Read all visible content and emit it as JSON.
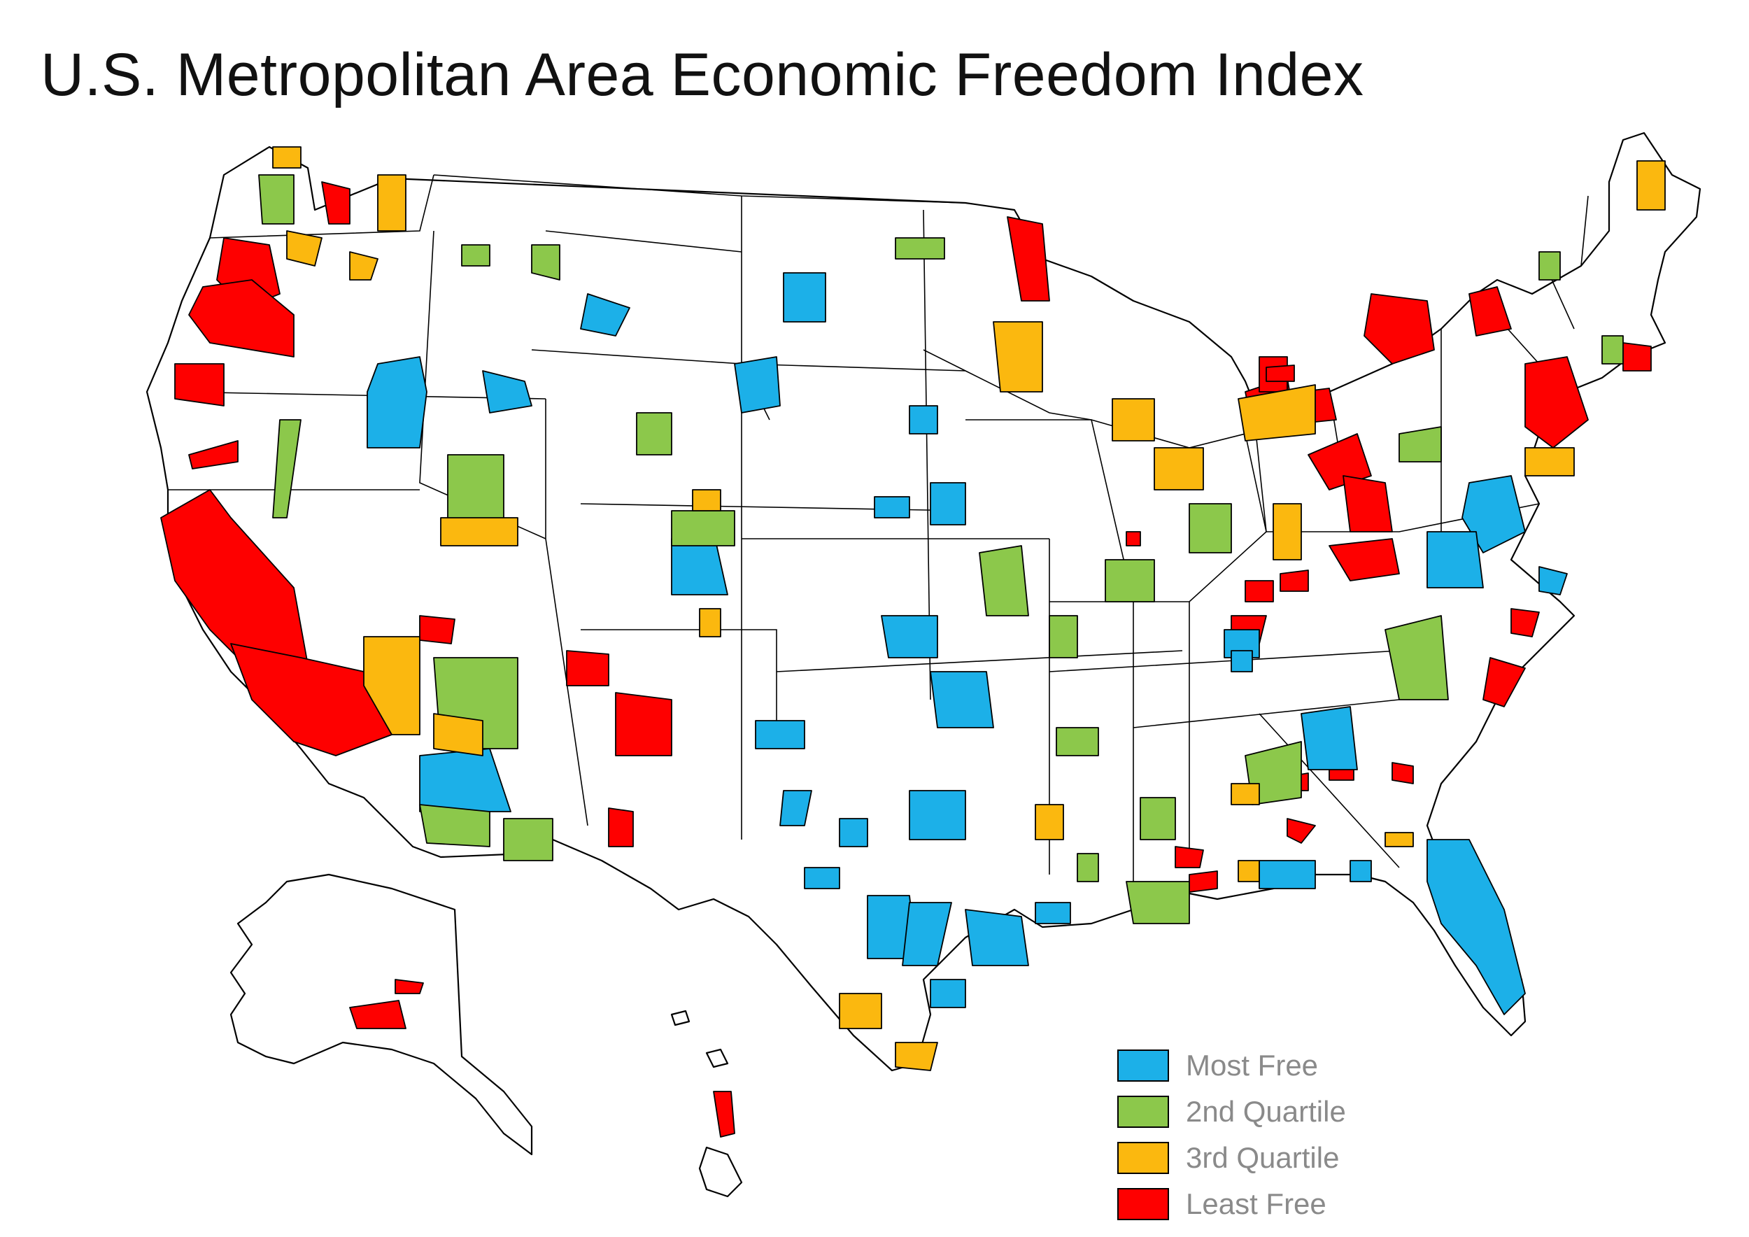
{
  "title": "U.S. Metropolitan Area Economic Freedom Index",
  "legend": [
    {
      "label": "Most Free",
      "color": "#1cb0e8"
    },
    {
      "label": "2nd Quartile",
      "color": "#8cc84b"
    },
    {
      "label": "3rd Quartile",
      "color": "#fbb80f"
    },
    {
      "label": "Least Free",
      "color": "#fe0000"
    }
  ],
  "colors": {
    "most_free": "#1cb0e8",
    "second_quartile": "#8cc84b",
    "third_quartile": "#fbb80f",
    "least_free": "#fe0000",
    "background": "#ffffff",
    "outline": "#000000"
  }
}
